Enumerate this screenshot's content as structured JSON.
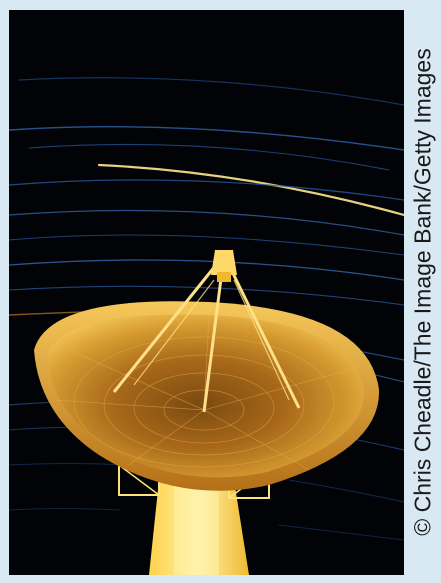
{
  "image": {
    "subject": "radio-telescope-dish",
    "credit": "© Chris Cheadle/The Image Bank/Getty Images"
  },
  "colors": {
    "frame_background": "#d8e9f4",
    "sky": "#020306",
    "star_trail_blue": "#2d5fa8",
    "dish_gold": "#c8881e",
    "dish_highlight": "#f2c44a",
    "tower_yellow": "#ffe27a"
  }
}
